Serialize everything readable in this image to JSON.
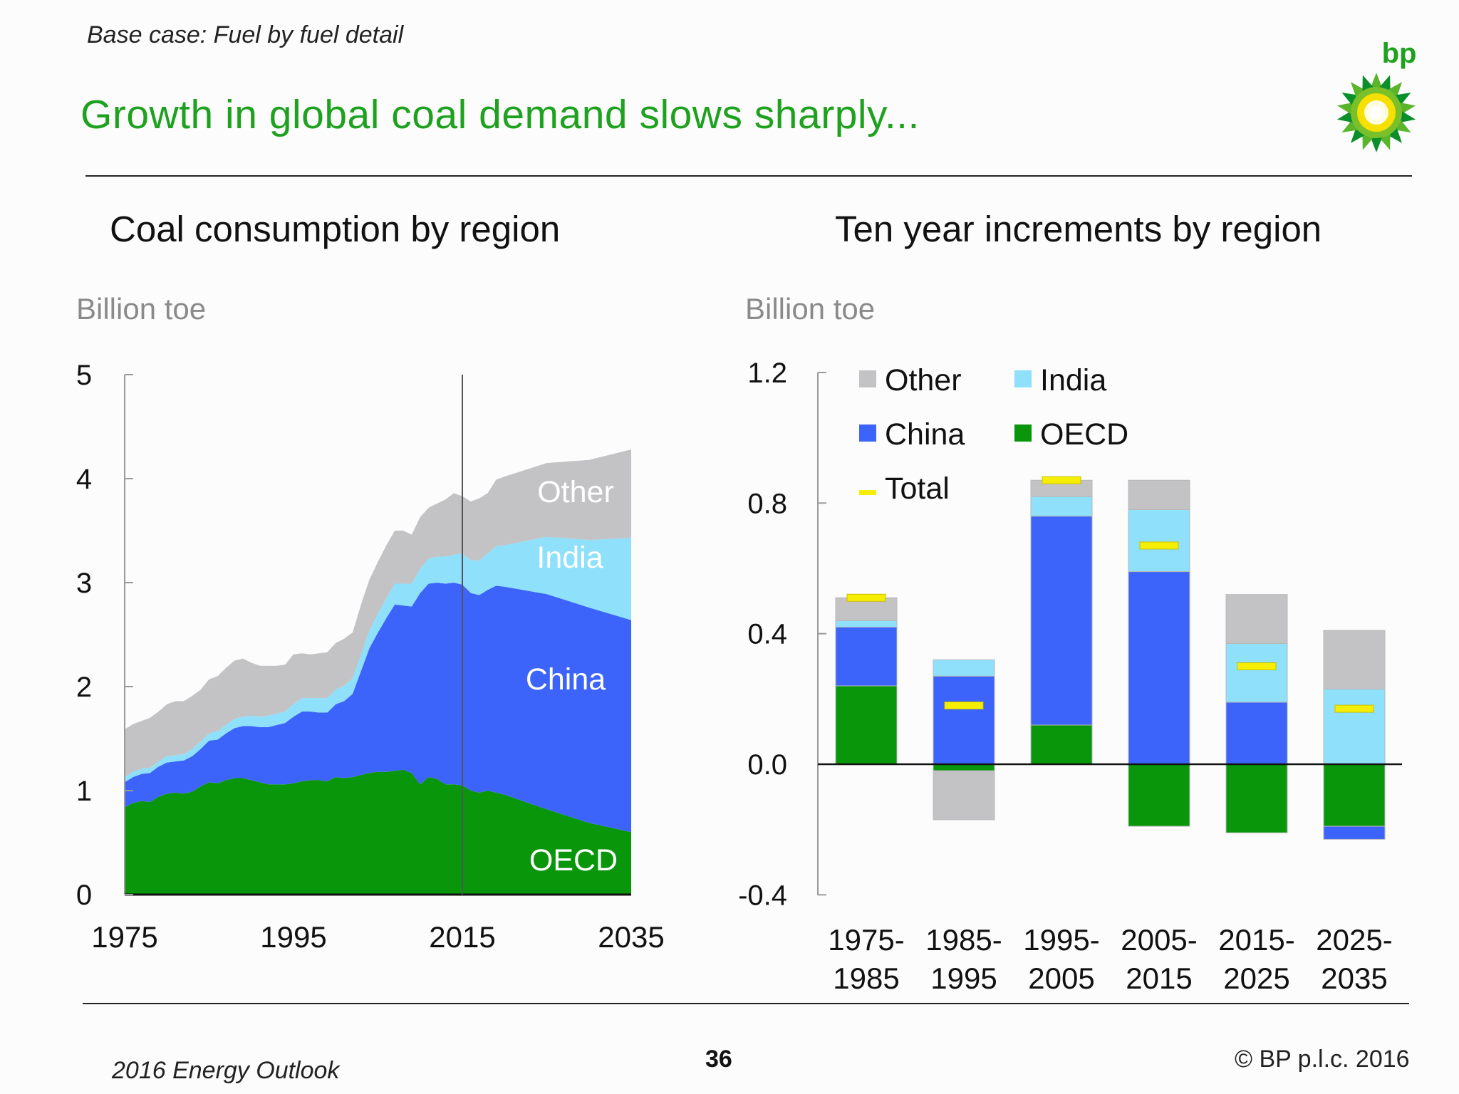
{
  "header": {
    "subtitle": "Base case: Fuel by fuel detail",
    "title": "Growth in global coal demand slows sharply...",
    "logo_text": "bp"
  },
  "colors": {
    "title": "#1ea11e",
    "oecd": "#0a960a",
    "china": "#3c64fa",
    "india": "#8ee0fb",
    "other": "#c3c3c6",
    "total": "#f5ee00"
  },
  "footer": {
    "left": "2016 Energy Outlook",
    "page": "36",
    "copyright": "© BP p.l.c. 2016"
  },
  "chart_data": [
    {
      "type": "area",
      "stacked": true,
      "title": "Coal consumption by region",
      "ylabel": "Billion toe",
      "xlim": [
        1975,
        2035
      ],
      "ylim": [
        0,
        5
      ],
      "yticks": [
        "0",
        "1",
        "2",
        "3",
        "4",
        "5"
      ],
      "xticks": [
        "1975",
        "1995",
        "2015",
        "2035"
      ],
      "marker_year": 2015,
      "x": [
        1975,
        1976,
        1977,
        1978,
        1979,
        1980,
        1981,
        1982,
        1983,
        1984,
        1985,
        1986,
        1987,
        1988,
        1989,
        1990,
        1991,
        1992,
        1993,
        1994,
        1995,
        1996,
        1997,
        1998,
        1999,
        2000,
        2001,
        2002,
        2003,
        2004,
        2005,
        2006,
        2007,
        2008,
        2009,
        2010,
        2011,
        2012,
        2013,
        2014,
        2015,
        2016,
        2017,
        2018,
        2019,
        2020,
        2025,
        2030,
        2035
      ],
      "series": [
        {
          "name": "OECD",
          "label": "OECD",
          "values": [
            0.84,
            0.88,
            0.9,
            0.89,
            0.94,
            0.97,
            0.98,
            0.97,
            0.99,
            1.04,
            1.08,
            1.07,
            1.1,
            1.12,
            1.12,
            1.1,
            1.08,
            1.06,
            1.06,
            1.06,
            1.07,
            1.09,
            1.1,
            1.1,
            1.09,
            1.13,
            1.12,
            1.13,
            1.15,
            1.17,
            1.18,
            1.18,
            1.19,
            1.2,
            1.17,
            1.06,
            1.13,
            1.11,
            1.06,
            1.06,
            1.05,
            1.0,
            0.98,
            1.0,
            0.98,
            0.96,
            0.82,
            0.69,
            0.6
          ]
        },
        {
          "name": "China",
          "label": "China",
          "values": [
            0.24,
            0.25,
            0.26,
            0.28,
            0.29,
            0.3,
            0.3,
            0.32,
            0.34,
            0.36,
            0.4,
            0.42,
            0.45,
            0.48,
            0.5,
            0.52,
            0.53,
            0.55,
            0.57,
            0.59,
            0.64,
            0.67,
            0.66,
            0.65,
            0.66,
            0.7,
            0.74,
            0.8,
            1.0,
            1.2,
            1.34,
            1.48,
            1.6,
            1.58,
            1.6,
            1.84,
            1.86,
            1.89,
            1.93,
            1.94,
            1.93,
            1.9,
            1.9,
            1.93,
            1.99,
            2.0,
            2.07,
            2.07,
            2.04
          ]
        },
        {
          "name": "India",
          "label": "India",
          "values": [
            0.05,
            0.05,
            0.05,
            0.05,
            0.05,
            0.06,
            0.06,
            0.06,
            0.07,
            0.07,
            0.07,
            0.08,
            0.08,
            0.09,
            0.09,
            0.1,
            0.1,
            0.11,
            0.11,
            0.11,
            0.12,
            0.13,
            0.13,
            0.14,
            0.14,
            0.14,
            0.15,
            0.15,
            0.16,
            0.17,
            0.18,
            0.19,
            0.2,
            0.21,
            0.22,
            0.23,
            0.24,
            0.25,
            0.26,
            0.27,
            0.3,
            0.32,
            0.33,
            0.35,
            0.38,
            0.4,
            0.55,
            0.65,
            0.79
          ]
        },
        {
          "name": "Other",
          "label": "Other",
          "values": [
            0.46,
            0.46,
            0.46,
            0.48,
            0.48,
            0.5,
            0.52,
            0.51,
            0.51,
            0.5,
            0.52,
            0.53,
            0.55,
            0.56,
            0.56,
            0.51,
            0.49,
            0.48,
            0.46,
            0.45,
            0.48,
            0.43,
            0.42,
            0.43,
            0.44,
            0.45,
            0.45,
            0.44,
            0.48,
            0.49,
            0.5,
            0.51,
            0.51,
            0.51,
            0.47,
            0.5,
            0.49,
            0.51,
            0.55,
            0.59,
            0.55,
            0.56,
            0.6,
            0.58,
            0.64,
            0.66,
            0.71,
            0.77,
            0.85
          ]
        }
      ]
    },
    {
      "type": "bar",
      "stacked": true,
      "title": "Ten year increments by region",
      "ylabel": "Billion toe",
      "ylim": [
        -0.4,
        1.2
      ],
      "yticks": [
        "-0.4",
        "0.0",
        "0.4",
        "0.8",
        "1.2"
      ],
      "categories": [
        [
          "1975-",
          "1985"
        ],
        [
          "1985-",
          "1995"
        ],
        [
          "1995-",
          "2005"
        ],
        [
          "2005-",
          "2015"
        ],
        [
          "2015-",
          "2025"
        ],
        [
          "2025-",
          "2035"
        ]
      ],
      "series": [
        {
          "name": "OECD",
          "values": [
            0.24,
            -0.02,
            0.12,
            -0.19,
            -0.21,
            -0.19
          ]
        },
        {
          "name": "China",
          "values": [
            0.18,
            0.27,
            0.64,
            0.59,
            0.19,
            -0.04
          ]
        },
        {
          "name": "India",
          "values": [
            0.02,
            0.05,
            0.06,
            0.19,
            0.18,
            0.23
          ]
        },
        {
          "name": "Other",
          "values": [
            0.07,
            -0.15,
            0.05,
            0.09,
            0.15,
            0.18
          ]
        }
      ],
      "total": [
        0.51,
        0.18,
        0.87,
        0.67,
        0.3,
        0.17
      ],
      "legend": [
        "Other",
        "India",
        "China",
        "OECD",
        "Total"
      ]
    }
  ]
}
